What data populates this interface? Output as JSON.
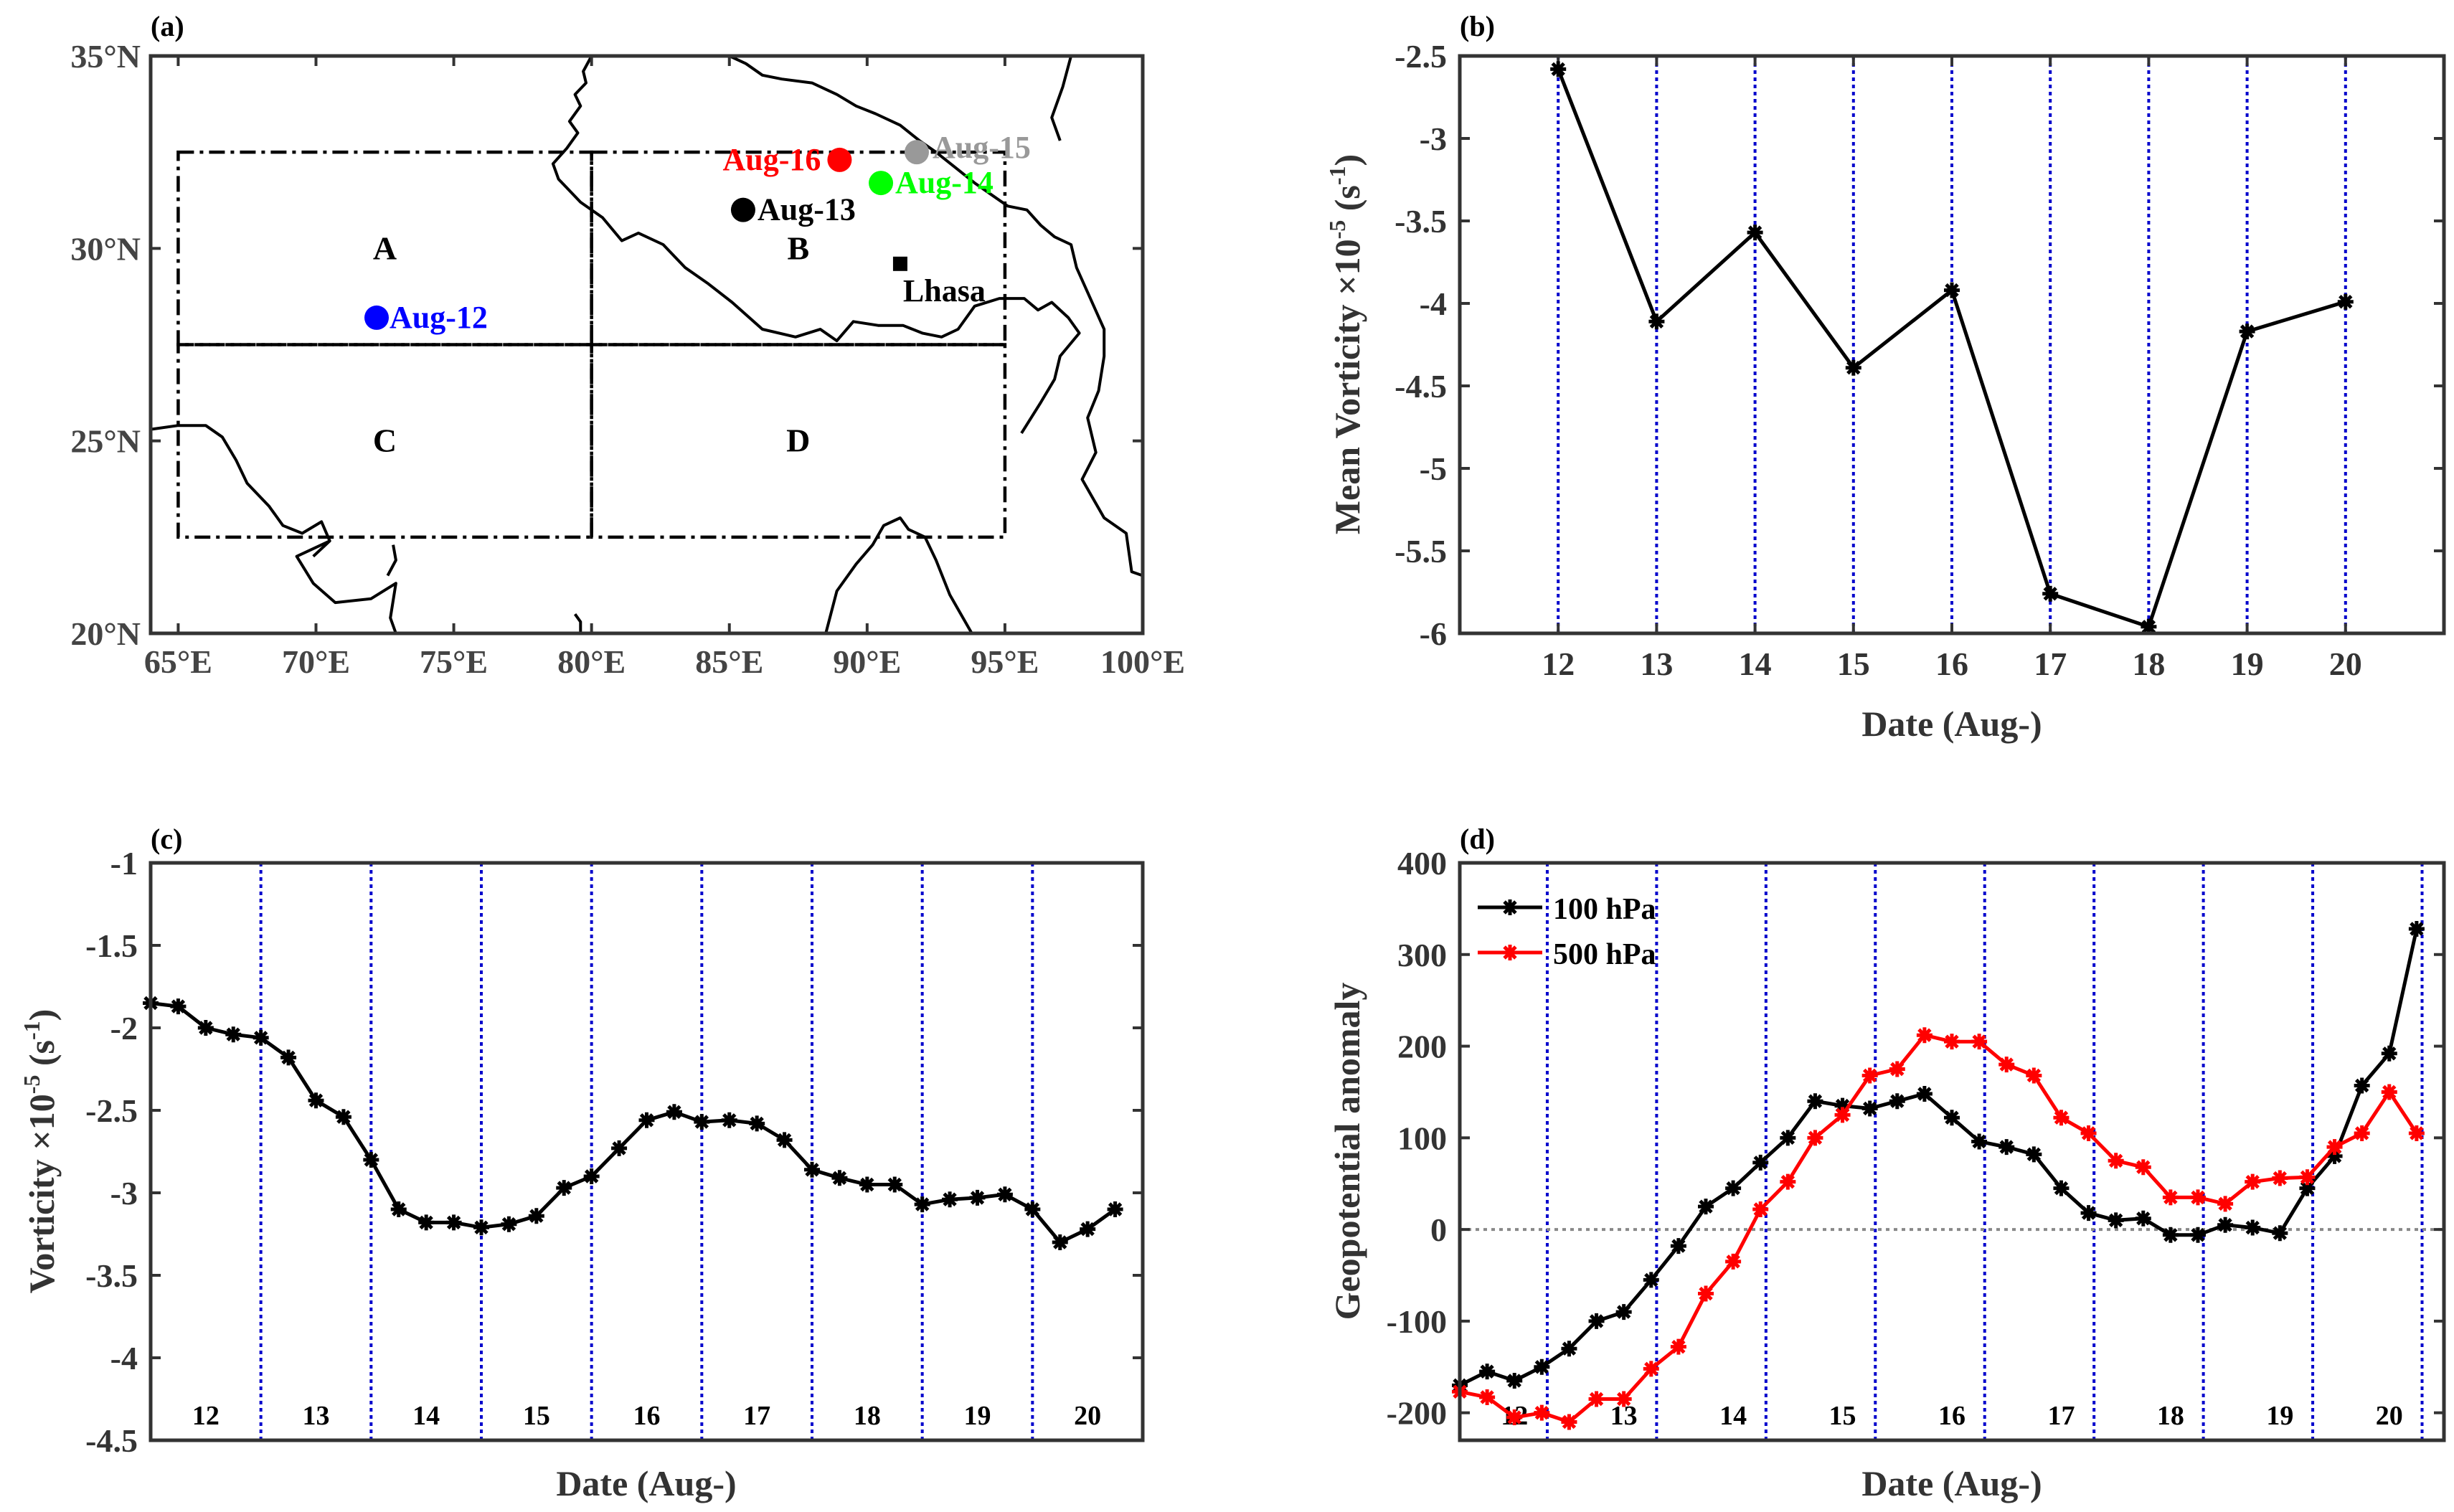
{
  "colors": {
    "axis": "#333333",
    "line": "#000000",
    "red": "#ff0000",
    "blue": "#0000ff",
    "green": "#00ff00",
    "gray": "#999999",
    "dotted_blue": "#0000cc",
    "zero_line": "#888888"
  },
  "chart_data": [
    {
      "panel": "(a)",
      "type": "map",
      "lon_ticks": [
        "65°E",
        "70°E",
        "75°E",
        "80°E",
        "85°E",
        "90°E",
        "95°E",
        "100°E"
      ],
      "lat_ticks": [
        "20°N",
        "25°N",
        "30°N",
        "35°N"
      ],
      "xlim": [
        64,
        100
      ],
      "ylim": [
        20,
        35
      ],
      "regions": [
        {
          "label": "A",
          "lon": [
            65,
            80
          ],
          "lat": [
            27.5,
            32.5
          ]
        },
        {
          "label": "B",
          "lon": [
            80,
            95
          ],
          "lat": [
            27.5,
            32.5
          ]
        },
        {
          "label": "C",
          "lon": [
            65,
            80
          ],
          "lat": [
            22.5,
            27.5
          ]
        },
        {
          "label": "D",
          "lon": [
            80,
            95
          ],
          "lat": [
            22.5,
            27.5
          ]
        }
      ],
      "points": [
        {
          "label": "Aug-12",
          "lon": 72.2,
          "lat": 28.2,
          "color": "blue"
        },
        {
          "label": "Aug-13",
          "lon": 85.5,
          "lat": 31.0,
          "color": "black"
        },
        {
          "label": "Aug-14",
          "lon": 90.5,
          "lat": 31.7,
          "color": "green"
        },
        {
          "label": "Aug-15",
          "lon": 91.8,
          "lat": 32.5,
          "color": "gray"
        },
        {
          "label": "Aug-16",
          "lon": 89.0,
          "lat": 32.3,
          "color": "red"
        }
      ],
      "station": {
        "label": "Lhasa",
        "lon": 91.2,
        "lat": 29.6
      }
    },
    {
      "panel": "(b)",
      "type": "line",
      "x": [
        12,
        13,
        14,
        15,
        16,
        17,
        18,
        19,
        20
      ],
      "values": [
        -2.58,
        -4.11,
        -3.57,
        -4.39,
        -3.92,
        -5.76,
        -5.96,
        -4.17,
        -3.99
      ],
      "xlim": [
        11,
        21
      ],
      "ylim": [
        -6,
        -2.5
      ],
      "yticks": [
        "-2.5",
        "-3",
        "-3.5",
        "-4",
        "-4.5",
        "-5",
        "-5.5",
        "-6"
      ],
      "xticks": [
        "12",
        "13",
        "14",
        "15",
        "16",
        "17",
        "18",
        "19",
        "20"
      ],
      "ylabel_main": "Mean Vorticity ×10",
      "ylabel_exp": "-5",
      "ylabel_unit_pre": " (s",
      "ylabel_unit_exp": "-1",
      "ylabel_unit_post": ")",
      "xlabel": "Date (Aug-)"
    },
    {
      "panel": "(c)",
      "type": "line",
      "x": [
        12.0,
        12.25,
        12.5,
        12.75,
        13.0,
        13.25,
        13.5,
        13.75,
        14.0,
        14.25,
        14.5,
        14.75,
        15.0,
        15.25,
        15.5,
        15.75,
        16.0,
        16.25,
        16.5,
        16.75,
        17.0,
        17.25,
        17.5,
        17.75,
        18.0,
        18.25,
        18.5,
        18.75,
        19.0,
        19.25,
        19.5,
        19.75,
        20.0,
        20.25,
        20.5,
        20.75
      ],
      "values": [
        -1.85,
        -1.87,
        -2.0,
        -2.04,
        -2.06,
        -2.18,
        -2.44,
        -2.54,
        -2.8,
        -3.1,
        -3.18,
        -3.18,
        -3.21,
        -3.19,
        -3.14,
        -2.97,
        -2.9,
        -2.73,
        -2.56,
        -2.51,
        -2.57,
        -2.56,
        -2.58,
        -2.68,
        -2.86,
        -2.91,
        -2.95,
        -2.95,
        -3.07,
        -3.04,
        -3.03,
        -3.01,
        -3.1,
        -3.3,
        -3.22,
        -3.1
      ],
      "xlim": [
        12,
        21
      ],
      "ylim": [
        -4.5,
        -1
      ],
      "yticks": [
        "-1",
        "-1.5",
        "-2",
        "-2.5",
        "-3",
        "-3.5",
        "-4",
        "-4.5"
      ],
      "day_labels": [
        "12",
        "13",
        "14",
        "15",
        "16",
        "17",
        "18",
        "19",
        "20"
      ],
      "ylabel_main": "Vorticity ×10",
      "ylabel_exp": "-5",
      "ylabel_unit_pre": " (s",
      "ylabel_unit_exp": "-1",
      "ylabel_unit_post": ")",
      "xlabel": "Date (Aug-)"
    },
    {
      "panel": "(d)",
      "type": "line",
      "x": [
        12.0,
        12.25,
        12.5,
        12.75,
        13.0,
        13.25,
        13.5,
        13.75,
        14.0,
        14.25,
        14.5,
        14.75,
        15.0,
        15.25,
        15.5,
        15.75,
        16.0,
        16.25,
        16.5,
        16.75,
        17.0,
        17.25,
        17.5,
        17.75,
        18.0,
        18.25,
        18.5,
        18.75,
        19.0,
        19.25,
        19.5,
        19.75,
        20.0,
        20.25,
        20.5,
        20.75
      ],
      "series": [
        {
          "name": "100 hPa",
          "color": "black",
          "values": [
            -170,
            -155,
            -165,
            -150,
            -130,
            -100,
            -90,
            -55,
            -18,
            25,
            45,
            73,
            100,
            140,
            135,
            132,
            140,
            148,
            122,
            96,
            90,
            82,
            45,
            18,
            10,
            12,
            -6,
            -6,
            5,
            2,
            -4,
            45,
            80,
            157,
            192,
            328
          ]
        },
        {
          "name": "500 hPa",
          "color": "red",
          "values": [
            -177,
            -183,
            -205,
            -200,
            -210,
            -185,
            -185,
            -152,
            -128,
            -70,
            -35,
            22,
            52,
            100,
            125,
            168,
            175,
            212,
            205,
            205,
            180,
            168,
            122,
            105,
            75,
            68,
            35,
            35,
            28,
            52,
            56,
            57,
            90,
            105,
            150,
            105
          ]
        }
      ],
      "xlim": [
        12,
        21
      ],
      "ylim": [
        -230,
        400
      ],
      "yticks": [
        "400",
        "300",
        "200",
        "100",
        "0",
        "-100",
        "-200"
      ],
      "day_labels": [
        "12",
        "13",
        "14",
        "15",
        "16",
        "17",
        "18",
        "19",
        "20"
      ],
      "ylabel": "Geopotential anomaly",
      "xlabel": "Date (Aug-)"
    }
  ]
}
